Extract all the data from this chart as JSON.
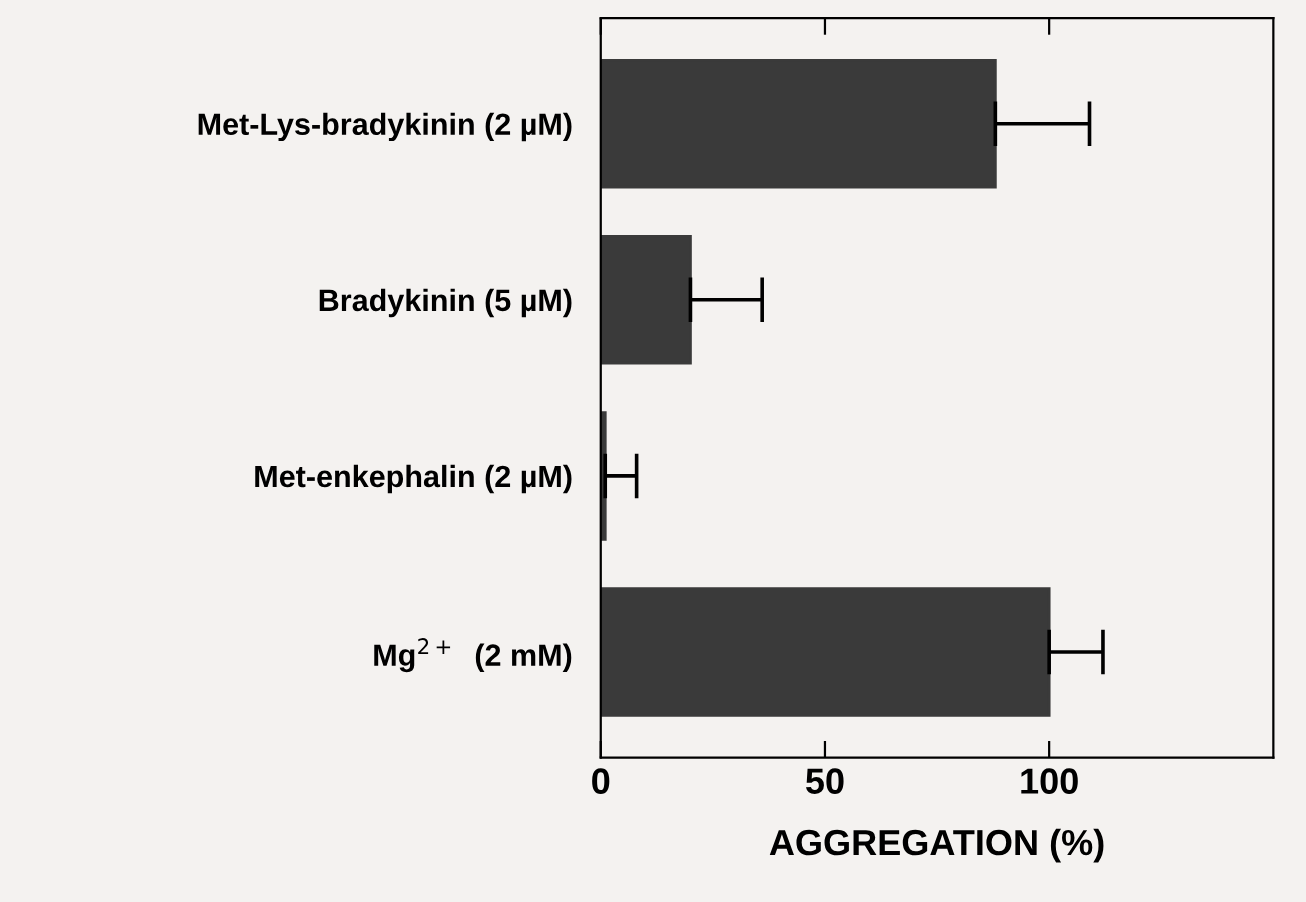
{
  "chart_data": {
    "type": "bar",
    "orientation": "horizontal",
    "xlabel": "AGGREGATION (%)",
    "categories": [
      "Met-Lys-bradykinin (2 µM)",
      "Bradykinin (5 µM)",
      "Met-enkephalin (2 µM)",
      "Mg$^{2+}$  (2 mM)"
    ],
    "values": [
      88,
      20,
      1,
      100
    ],
    "color": "#3a3a3a",
    "errors": [
      [
        88,
        109
      ],
      [
        20,
        36
      ],
      [
        1,
        8
      ],
      [
        100,
        112
      ]
    ],
    "xlim": [
      0,
      150
    ],
    "xticks": [
      0,
      50,
      100
    ],
    "grid": false,
    "legend": false
  }
}
